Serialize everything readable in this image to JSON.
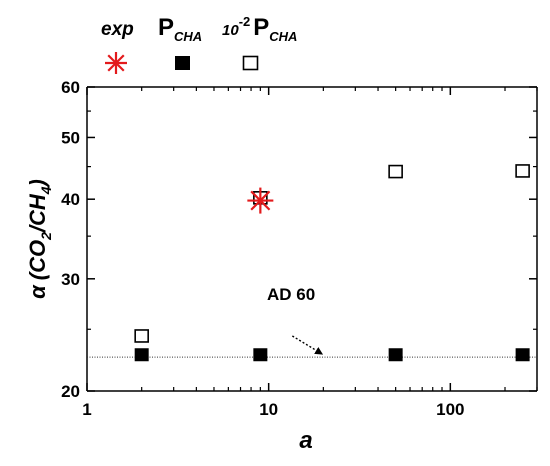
{
  "chart_data": {
    "type": "scatter",
    "x_scale": "log",
    "y_scale": "log",
    "xlim": [
      1,
      300
    ],
    "ylim": [
      20,
      60
    ],
    "x_ticks": [
      {
        "value": 1,
        "label": "1"
      },
      {
        "value": 10,
        "label": "10"
      },
      {
        "value": 100,
        "label": "100"
      }
    ],
    "y_ticks": [
      {
        "value": 20,
        "label": "20"
      },
      {
        "value": 30,
        "label": "30"
      },
      {
        "value": 40,
        "label": "40"
      },
      {
        "value": 50,
        "label": "50"
      },
      {
        "value": 60,
        "label": "60"
      }
    ],
    "xlabel": "a",
    "ylabel": {
      "alpha": "α",
      "open": "(CO",
      "sub1": "2",
      "mid": "/CH",
      "sub2": "4",
      "close": ")"
    },
    "grid": false,
    "legend_position": "top",
    "series": [
      {
        "name": "exp",
        "marker": "asterisk",
        "color": "#e31a1c",
        "points": [
          {
            "x": 9,
            "y": 39.8
          }
        ]
      },
      {
        "name_parts": {
          "main": "P",
          "sub": "CHA"
        },
        "marker": "filled-square",
        "color": "#000000",
        "points": [
          {
            "x": 2,
            "y": 22.8
          },
          {
            "x": 9,
            "y": 22.8
          },
          {
            "x": 50,
            "y": 22.8
          },
          {
            "x": 250,
            "y": 22.8
          }
        ]
      },
      {
        "name_parts": {
          "pre": "10",
          "sup": "-2",
          "main": "P",
          "sub": "CHA"
        },
        "marker": "open-square",
        "color": "#000000",
        "points": [
          {
            "x": 2,
            "y": 24.4
          },
          {
            "x": 9,
            "y": 40.2
          },
          {
            "x": 50,
            "y": 44.2
          },
          {
            "x": 250,
            "y": 44.3
          }
        ]
      }
    ],
    "reference_line": {
      "y": 22.6,
      "style": "dotted"
    },
    "annotation": {
      "text": "AD 60",
      "arrow_from": {
        "x": 13.5,
        "y": 24.4
      },
      "arrow_to": {
        "x": 19.5,
        "y": 22.9
      }
    }
  }
}
